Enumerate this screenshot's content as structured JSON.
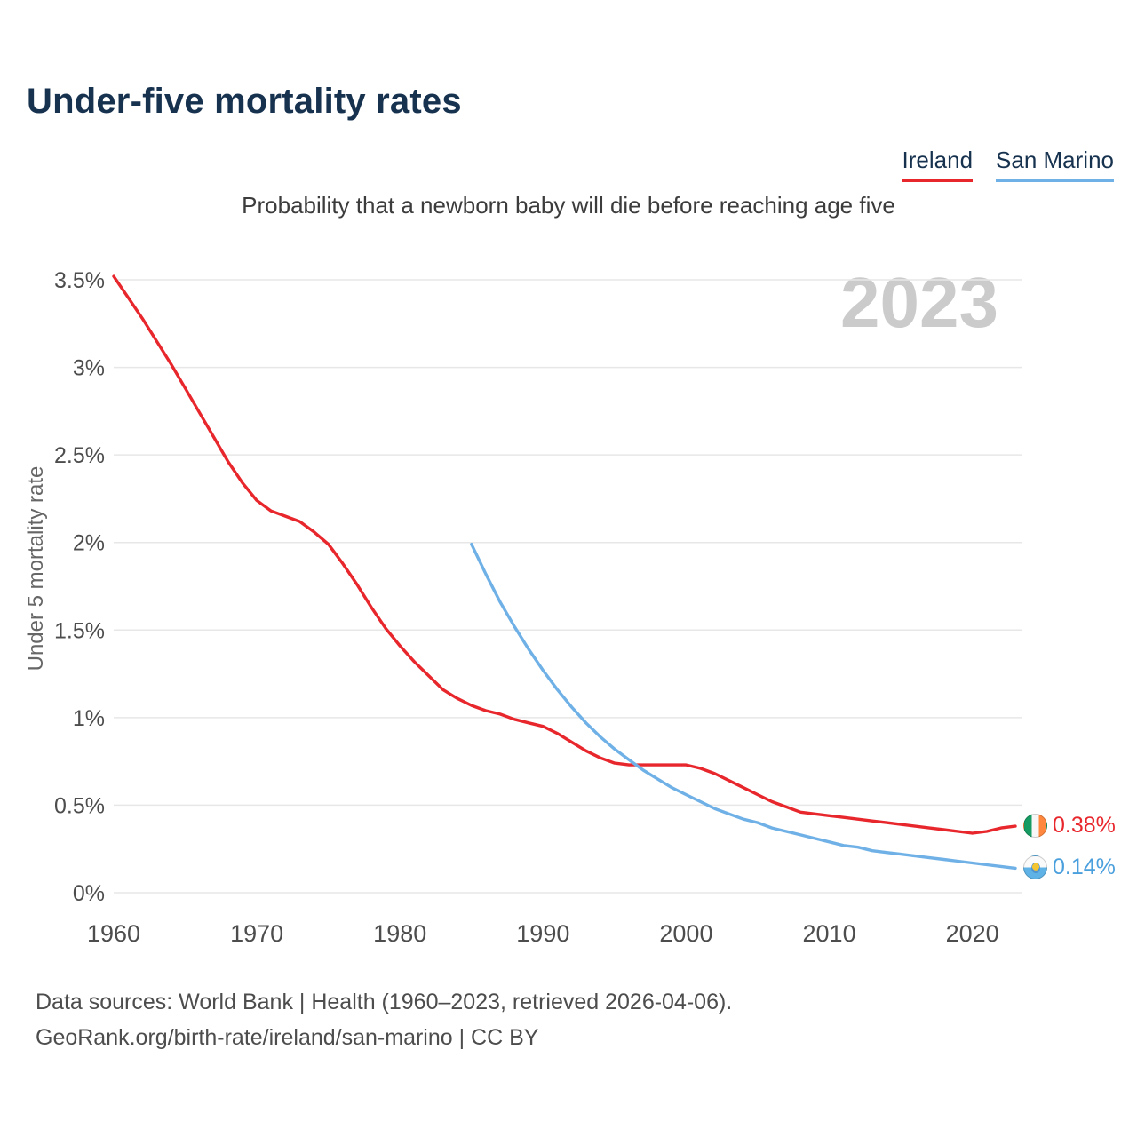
{
  "header": {
    "title": "Under-five mortality rates",
    "subtitle": "Probability that a newborn baby will die before reaching age five"
  },
  "legend": [
    {
      "label": "Ireland",
      "color": "#e8272d"
    },
    {
      "label": "San Marino",
      "color": "#6fb1e6"
    }
  ],
  "watermark": "2023",
  "chart_data": {
    "type": "line",
    "title": "Under-five mortality rates",
    "subtitle": "Probability that a newborn baby will die before reaching age five",
    "xlabel": "",
    "ylabel": "Under 5 mortality rate",
    "x_range": [
      1960,
      2023
    ],
    "ylim": [
      0,
      3.5
    ],
    "grid": "horizontal",
    "legend_position": "top-right",
    "y_ticks": [
      {
        "value": 0,
        "label": "0%"
      },
      {
        "value": 0.5,
        "label": "0.5%"
      },
      {
        "value": 1,
        "label": "1%"
      },
      {
        "value": 1.5,
        "label": "1.5%"
      },
      {
        "value": 2,
        "label": "2%"
      },
      {
        "value": 2.5,
        "label": "2.5%"
      },
      {
        "value": 3,
        "label": "3%"
      },
      {
        "value": 3.5,
        "label": "3.5%"
      }
    ],
    "x_ticks": [
      {
        "value": 1960,
        "label": "1960"
      },
      {
        "value": 1970,
        "label": "1970"
      },
      {
        "value": 1980,
        "label": "1980"
      },
      {
        "value": 1990,
        "label": "1990"
      },
      {
        "value": 2000,
        "label": "2000"
      },
      {
        "value": 2010,
        "label": "2010"
      },
      {
        "value": 2020,
        "label": "2020"
      }
    ],
    "series": [
      {
        "name": "Ireland",
        "color": "#e8272d",
        "start_year": 1960,
        "values": [
          3.52,
          3.4,
          3.28,
          3.15,
          3.02,
          2.88,
          2.74,
          2.6,
          2.46,
          2.34,
          2.24,
          2.18,
          2.15,
          2.12,
          2.06,
          1.99,
          1.88,
          1.76,
          1.63,
          1.51,
          1.41,
          1.32,
          1.24,
          1.16,
          1.11,
          1.07,
          1.04,
          1.02,
          0.99,
          0.97,
          0.95,
          0.91,
          0.86,
          0.81,
          0.77,
          0.74,
          0.73,
          0.73,
          0.73,
          0.73,
          0.73,
          0.71,
          0.68,
          0.64,
          0.6,
          0.56,
          0.52,
          0.49,
          0.46,
          0.45,
          0.44,
          0.43,
          0.42,
          0.41,
          0.4,
          0.39,
          0.38,
          0.37,
          0.36,
          0.35,
          0.34,
          0.35,
          0.37,
          0.38
        ]
      },
      {
        "name": "San Marino",
        "color": "#6fb1e6",
        "start_year": 1985,
        "values": [
          1.99,
          1.82,
          1.66,
          1.52,
          1.39,
          1.27,
          1.16,
          1.06,
          0.97,
          0.89,
          0.82,
          0.76,
          0.7,
          0.65,
          0.6,
          0.56,
          0.52,
          0.48,
          0.45,
          0.42,
          0.4,
          0.37,
          0.35,
          0.33,
          0.31,
          0.29,
          0.27,
          0.26,
          0.24,
          0.23,
          0.22,
          0.21,
          0.2,
          0.19,
          0.18,
          0.17,
          0.16,
          0.15,
          0.14
        ]
      }
    ]
  },
  "end_labels": [
    {
      "series": "Ireland",
      "value": 0.38,
      "value_label": "0.38%",
      "color": "#e8272d"
    },
    {
      "series": "San Marino",
      "value": 0.14,
      "value_label": "0.14%",
      "color": "#4a9fdd"
    }
  ],
  "footer": {
    "line1": "Data sources: World Bank | Health (1960–2023, retrieved 2026-04-06).",
    "line2": "GeoRank.org/birth-rate/ireland/san-marino | CC BY"
  }
}
